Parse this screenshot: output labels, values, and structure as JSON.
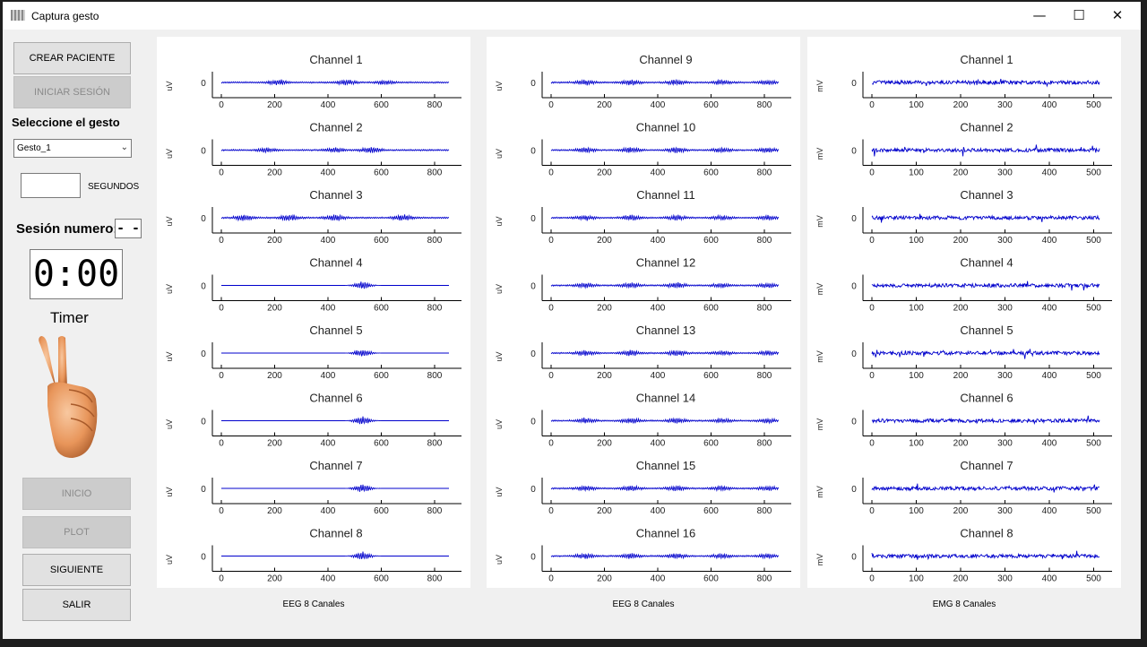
{
  "window": {
    "title": "Captura gesto",
    "controls": {
      "minimize": "—",
      "maximize": "☐",
      "close": "✕"
    }
  },
  "sidebar": {
    "crear_paciente": "CREAR PACIENTE",
    "iniciar_sesion": "INICIAR SESIÓN",
    "select_label": "Seleccione el gesto",
    "gesture_value": "Gesto_1",
    "seconds_label": "SEGUNDOS",
    "session_label": "Sesión numero:",
    "session_value": "- -",
    "timer_value": "0:00",
    "timer_label": "Timer",
    "inicio": "INICIO",
    "plot": "PLOT",
    "siguiente": "SIGUIENTE",
    "salir": "SALIR"
  },
  "panels": [
    {
      "caption": "EEG 8 Canales",
      "unit": "uV",
      "channels": [
        "Channel 1",
        "Channel 2",
        "Channel 3",
        "Channel 4",
        "Channel 5",
        "Channel 6",
        "Channel 7",
        "Channel 8"
      ],
      "ticks": [
        "0",
        "200",
        "400",
        "600",
        "800"
      ],
      "xmax": 850
    },
    {
      "caption": "EEG 8 Canales",
      "unit": "uV",
      "channels": [
        "Channel 9",
        "Channel 10",
        "Channel 11",
        "Channel 12",
        "Channel 13",
        "Channel 14",
        "Channel 15",
        "Channel 16"
      ],
      "ticks": [
        "0",
        "200",
        "400",
        "600",
        "800"
      ],
      "xmax": 850
    },
    {
      "caption": "EMG 8 Canales",
      "unit": "mV",
      "channels": [
        "Channel 1",
        "Channel 2",
        "Channel 3",
        "Channel 4",
        "Channel 5",
        "Channel 6",
        "Channel 7",
        "Channel 8"
      ],
      "ticks": [
        "0",
        "100",
        "200",
        "300",
        "400",
        "500"
      ],
      "xmax": 510
    }
  ],
  "y_tick": "0",
  "colors": {
    "signal": "#0000cc",
    "skin": "#e8955a"
  }
}
